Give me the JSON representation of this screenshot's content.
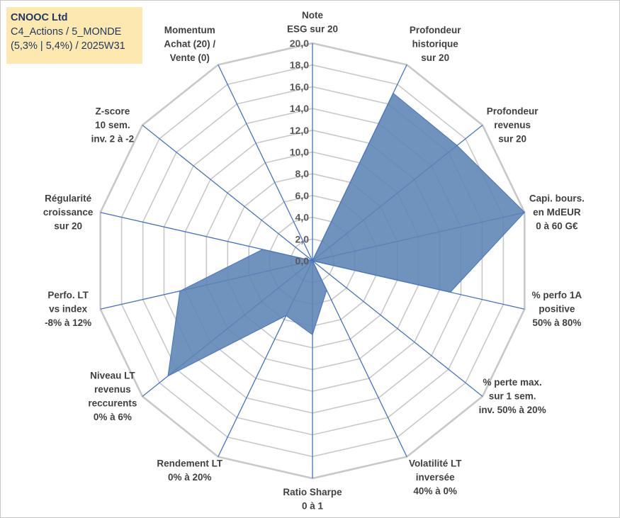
{
  "title_box": {
    "line1": "CNOOC Ltd",
    "line2": "C4_Actions / 5_MONDE",
    "line3": "(5,3% | 5,4%) / 2025W31"
  },
  "colors": {
    "grid": "#c8c8c8",
    "spokes": "#4472c4",
    "fill": "#5b84b4",
    "outline": "#4472c4"
  },
  "chart_data": {
    "type": "radar",
    "rmin": 0,
    "rmax": 20,
    "tick_step": 2,
    "tick_labels": [
      "0,0",
      "2,0",
      "4,0",
      "6,0",
      "8,0",
      "10,0",
      "12,0",
      "14,0",
      "16,0",
      "18,0",
      "20,0"
    ],
    "categories": [
      {
        "lines": [
          "Note",
          "ESG sur 20"
        ]
      },
      {
        "lines": [
          "Profondeur",
          "historique",
          "sur 20"
        ]
      },
      {
        "lines": [
          "Profondeur",
          "revenus",
          "sur 20"
        ]
      },
      {
        "lines": [
          "Capi. bours.",
          "en MdEUR",
          "0 à 60 G€"
        ]
      },
      {
        "lines": [
          "% perfo 1A",
          "positive",
          "50% à 80%"
        ]
      },
      {
        "lines": [
          "% perte max.",
          "sur 1 sem.",
          "inv. 50% à 20%"
        ]
      },
      {
        "lines": [
          "Volatilité LT",
          "inversée",
          "40% à 0%"
        ]
      },
      {
        "lines": [
          "Ratio Sharpe",
          "0 à 1"
        ]
      },
      {
        "lines": [
          "Rendement LT",
          "0% à 20%"
        ]
      },
      {
        "lines": [
          "Niveau LT",
          "revenus",
          "reccurents",
          "0% à 6%"
        ]
      },
      {
        "lines": [
          "Perfo. LT",
          "vs index",
          "-8% à 12%"
        ]
      },
      {
        "lines": [
          "Régularité",
          "croissance",
          "sur 20"
        ]
      },
      {
        "lines": [
          "Z-score",
          "10 sem.",
          "inv. 2 à -2"
        ]
      },
      {
        "lines": [
          "Momentum",
          "Achat (20) /",
          "Vente (0)"
        ]
      }
    ],
    "series": [
      {
        "values": [
          0,
          17.1,
          17.0,
          20.0,
          13.0,
          0,
          3.0,
          6.8,
          5.6,
          17.0,
          12.5,
          4.7,
          0,
          0
        ]
      }
    ],
    "grid": true
  }
}
